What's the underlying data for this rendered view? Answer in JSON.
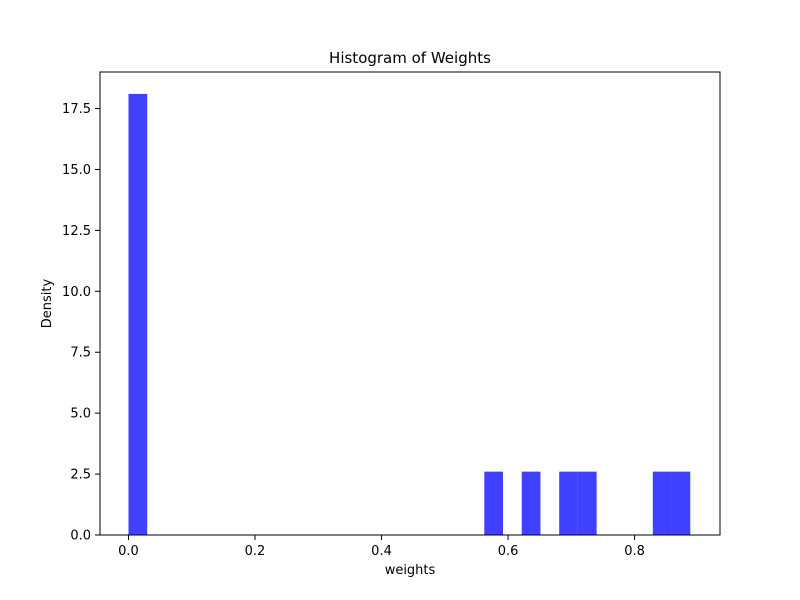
{
  "chart_data": {
    "type": "bar",
    "title": "Histogram of Weights",
    "xlabel": "weights",
    "ylabel": "Density",
    "xlim": [
      -0.045,
      0.935
    ],
    "ylim": [
      0,
      19.0
    ],
    "x_ticks": [
      0.0,
      0.2,
      0.4,
      0.6,
      0.8
    ],
    "x_tick_labels": [
      "0.0",
      "0.2",
      "0.4",
      "0.6",
      "0.8"
    ],
    "y_ticks": [
      0.0,
      2.5,
      5.0,
      7.5,
      10.0,
      12.5,
      15.0,
      17.5
    ],
    "y_tick_labels": [
      "0.0",
      "2.5",
      "5.0",
      "7.5",
      "10.0",
      "12.5",
      "15.0",
      "17.5"
    ],
    "bar_color": "#4040ff",
    "bars": [
      {
        "x0": 0.0,
        "x1": 0.0296,
        "value": 18.1
      },
      {
        "x0": 0.5624,
        "x1": 0.592,
        "value": 2.6
      },
      {
        "x0": 0.6216,
        "x1": 0.6512,
        "value": 2.6
      },
      {
        "x0": 0.6808,
        "x1": 0.7104,
        "value": 2.6
      },
      {
        "x0": 0.7104,
        "x1": 0.74,
        "value": 2.6
      },
      {
        "x0": 0.8288,
        "x1": 0.8584,
        "value": 2.6
      },
      {
        "x0": 0.8584,
        "x1": 0.888,
        "value": 2.6
      }
    ],
    "grid": false,
    "legend": "none"
  }
}
